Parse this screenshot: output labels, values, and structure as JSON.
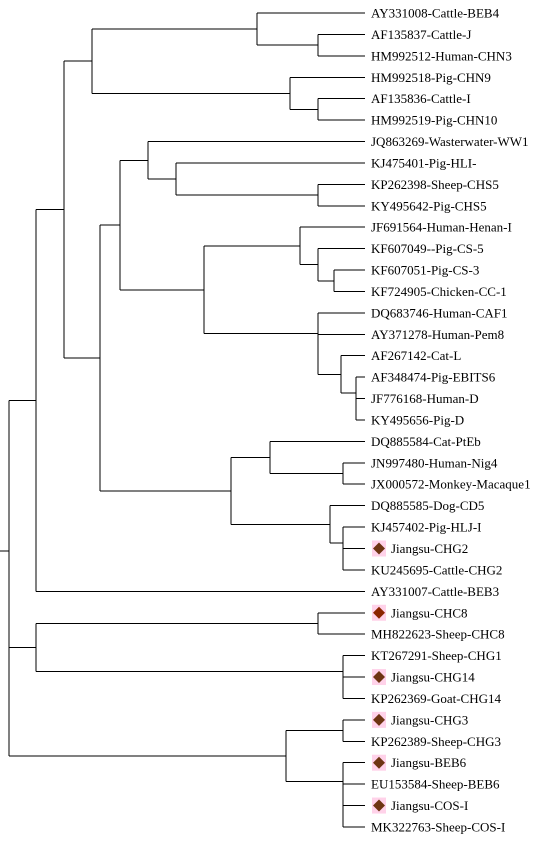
{
  "colors": {
    "branch": "#000000",
    "label": "#000000",
    "marker": "#8B2500",
    "marker_dark": "#6E3512",
    "marker_highlight": "#FF7FBF"
  },
  "tree": {
    "leaves": [
      {
        "label": "AY331008-Cattle-BEB4",
        "marker": false
      },
      {
        "label": "AF135837-Cattle-J",
        "marker": false
      },
      {
        "label": "HM992512-Human-CHN3",
        "marker": false
      },
      {
        "label": "HM992518-Pig-CHN9",
        "marker": false
      },
      {
        "label": "AF135836-Cattle-I",
        "marker": false
      },
      {
        "label": "HM992519-Pig-CHN10",
        "marker": false
      },
      {
        "label": "JQ863269-Wasterwater-WW1",
        "marker": false
      },
      {
        "label": "KJ475401-Pig-HLI-",
        "marker": false
      },
      {
        "label": "KP262398-Sheep-CHS5",
        "marker": false
      },
      {
        "label": "KY495642-Pig-CHS5",
        "marker": false
      },
      {
        "label": "JF691564-Human-Henan-I",
        "marker": false
      },
      {
        "label": "KF607049--Pig-CS-5",
        "marker": false
      },
      {
        "label": "KF607051-Pig-CS-3",
        "marker": false
      },
      {
        "label": "KF724905-Chicken-CC-1",
        "marker": false
      },
      {
        "label": "DQ683746-Human-CAF1",
        "marker": false
      },
      {
        "label": "AY371278-Human-Pem8",
        "marker": false
      },
      {
        "label": "AF267142-Cat-L",
        "marker": false
      },
      {
        "label": "AF348474-Pig-EBITS6",
        "marker": false
      },
      {
        "label": "JF776168-Human-D",
        "marker": false
      },
      {
        "label": "KY495656-Pig-D",
        "marker": false
      },
      {
        "label": "DQ885584-Cat-PtEb",
        "marker": false
      },
      {
        "label": "JN997480-Human-Nig4",
        "marker": false
      },
      {
        "label": "JX000572-Monkey-Macaque1",
        "marker": false
      },
      {
        "label": "DQ885585-Dog-CD5",
        "marker": false
      },
      {
        "label": "KJ457402-Pig-HLJ-I",
        "marker": false
      },
      {
        "label": "Jiangsu-CHG2",
        "marker": true
      },
      {
        "label": "KU245695-Cattle-CHG2",
        "marker": false
      },
      {
        "label": "AY331007-Cattle-BEB3",
        "marker": false
      },
      {
        "label": "Jiangsu-CHC8",
        "marker": true
      },
      {
        "label": "MH822623-Sheep-CHC8",
        "marker": false
      },
      {
        "label": "KT267291-Sheep-CHG1",
        "marker": false
      },
      {
        "label": "Jiangsu-CHG14",
        "marker": true
      },
      {
        "label": "KP262369-Goat-CHG14",
        "marker": false
      },
      {
        "label": "Jiangsu-CHG3",
        "marker": true
      },
      {
        "label": "KP262389-Sheep-CHG3",
        "marker": false
      },
      {
        "label": "Jiangsu-BEB6",
        "marker": true
      },
      {
        "label": "EU153584-Sheep-BEB6",
        "marker": false
      },
      {
        "label": "Jiangsu-COS-I",
        "marker": true
      },
      {
        "label": "MK322763-Sheep-COS-I",
        "marker": false
      }
    ]
  }
}
